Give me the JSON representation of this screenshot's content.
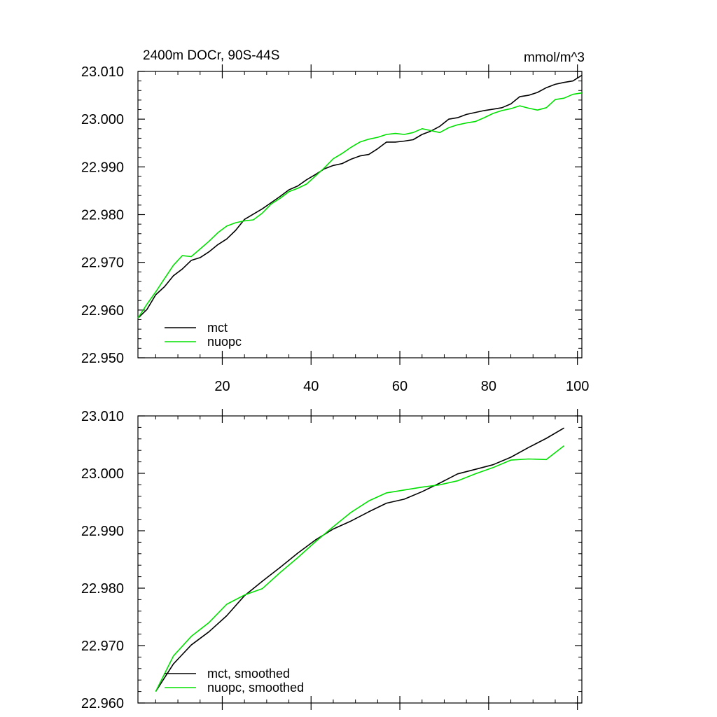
{
  "chart_data": [
    {
      "type": "line",
      "title": "2400m DOCr, 90S-44S",
      "units": "mmol/m^3",
      "xlim": [
        1,
        101
      ],
      "ylim": [
        22.95,
        23.01
      ],
      "xticks": [
        20,
        40,
        60,
        80,
        100
      ],
      "xtick_labels": [
        "20",
        "40",
        "60",
        "80",
        "100"
      ],
      "yticks": [
        22.95,
        22.96,
        22.97,
        22.98,
        22.99,
        23.0,
        23.01
      ],
      "ytick_labels": [
        "22.950",
        "22.960",
        "22.970",
        "22.980",
        "22.990",
        "23.000",
        "23.010"
      ],
      "legend_position": "bottom-left",
      "series": [
        {
          "name": "mct",
          "color": "#000000",
          "x": [
            1,
            3,
            5,
            7,
            9,
            11,
            13,
            15,
            17,
            19,
            21,
            23,
            25,
            27,
            29,
            31,
            33,
            35,
            37,
            39,
            41,
            43,
            45,
            47,
            49,
            51,
            53,
            55,
            57,
            59,
            61,
            63,
            65,
            67,
            69,
            71,
            73,
            75,
            77,
            79,
            81,
            83,
            85,
            87,
            89,
            91,
            93,
            95,
            97,
            99,
            101
          ],
          "y": [
            22.9583,
            22.9601,
            22.9632,
            22.9649,
            22.9672,
            22.9686,
            22.9704,
            22.971,
            22.9722,
            22.9737,
            22.9749,
            22.9767,
            22.979,
            22.9801,
            22.9812,
            22.9825,
            22.9838,
            22.9852,
            22.986,
            22.9873,
            22.9884,
            22.9896,
            22.9903,
            22.9907,
            22.9916,
            22.9923,
            22.9926,
            22.9938,
            22.9952,
            22.9952,
            22.9954,
            22.9957,
            22.9968,
            22.9975,
            22.9985,
            23.0,
            23.0003,
            23.001,
            23.0014,
            23.0018,
            23.0021,
            23.0024,
            23.0032,
            23.0047,
            23.005,
            23.0056,
            23.0066,
            23.0073,
            23.0077,
            23.008,
            23.0092
          ]
        },
        {
          "name": "nuopc",
          "color": "#00e000",
          "x": [
            1,
            3,
            5,
            7,
            9,
            11,
            13,
            15,
            17,
            19,
            21,
            23,
            25,
            27,
            29,
            31,
            33,
            35,
            37,
            39,
            41,
            43,
            45,
            47,
            49,
            51,
            53,
            55,
            57,
            59,
            61,
            63,
            65,
            67,
            69,
            71,
            73,
            75,
            77,
            79,
            81,
            83,
            85,
            87,
            89,
            91,
            93,
            95,
            97,
            99,
            101
          ],
          "y": [
            22.9583,
            22.9612,
            22.9638,
            22.9666,
            22.9694,
            22.9714,
            22.9712,
            22.9728,
            22.9744,
            22.9762,
            22.9776,
            22.9783,
            22.9787,
            22.9789,
            22.9803,
            22.9822,
            22.9834,
            22.9848,
            22.9855,
            22.9864,
            22.9881,
            22.9898,
            22.9917,
            22.9928,
            22.9941,
            22.9952,
            22.9958,
            22.9962,
            22.9968,
            22.997,
            22.9968,
            22.9972,
            22.998,
            22.9976,
            22.9972,
            22.9982,
            22.9988,
            22.9992,
            22.9995,
            23.0003,
            23.0012,
            23.0018,
            23.0022,
            23.0028,
            23.0023,
            23.0019,
            23.0024,
            23.0041,
            23.0044,
            23.0052,
            23.0055
          ]
        }
      ]
    },
    {
      "type": "line",
      "xlim": [
        1,
        101
      ],
      "ylim": [
        22.96,
        23.01
      ],
      "xticks": [
        20,
        40,
        60,
        80,
        100
      ],
      "yticks": [
        22.96,
        22.97,
        22.98,
        22.99,
        23.0,
        23.01
      ],
      "ytick_labels": [
        "22.960",
        "22.970",
        "22.980",
        "22.990",
        "23.000",
        "23.010"
      ],
      "legend_position": "bottom-left",
      "series": [
        {
          "name": "mct, smoothed",
          "color": "#000000",
          "x": [
            5,
            9,
            13,
            17,
            21,
            25,
            29,
            33,
            37,
            41,
            45,
            49,
            53,
            57,
            61,
            65,
            69,
            73,
            77,
            81,
            85,
            89,
            93,
            97
          ],
          "y": [
            22.962,
            22.9668,
            22.9701,
            22.9724,
            22.9752,
            22.9787,
            22.9812,
            22.9836,
            22.9861,
            22.9884,
            22.9903,
            22.9917,
            22.9933,
            22.9948,
            22.9955,
            22.9968,
            22.9983,
            22.9999,
            23.0007,
            23.0015,
            23.0028,
            23.0045,
            23.0061,
            23.0079
          ]
        },
        {
          "name": "nuopc, smoothed",
          "color": "#00e000",
          "x": [
            5,
            9,
            13,
            17,
            21,
            25,
            29,
            33,
            37,
            41,
            45,
            49,
            53,
            57,
            61,
            65,
            69,
            73,
            77,
            81,
            85,
            89,
            93,
            97
          ],
          "y": [
            22.962,
            22.9682,
            22.9716,
            22.974,
            22.9772,
            22.9788,
            22.9799,
            22.9827,
            22.9853,
            22.9881,
            22.9907,
            22.9932,
            22.9952,
            22.9966,
            22.9971,
            22.9976,
            22.998,
            22.9987,
            22.9999,
            23.001,
            23.0023,
            23.0025,
            23.0024,
            23.0048
          ]
        }
      ]
    }
  ]
}
